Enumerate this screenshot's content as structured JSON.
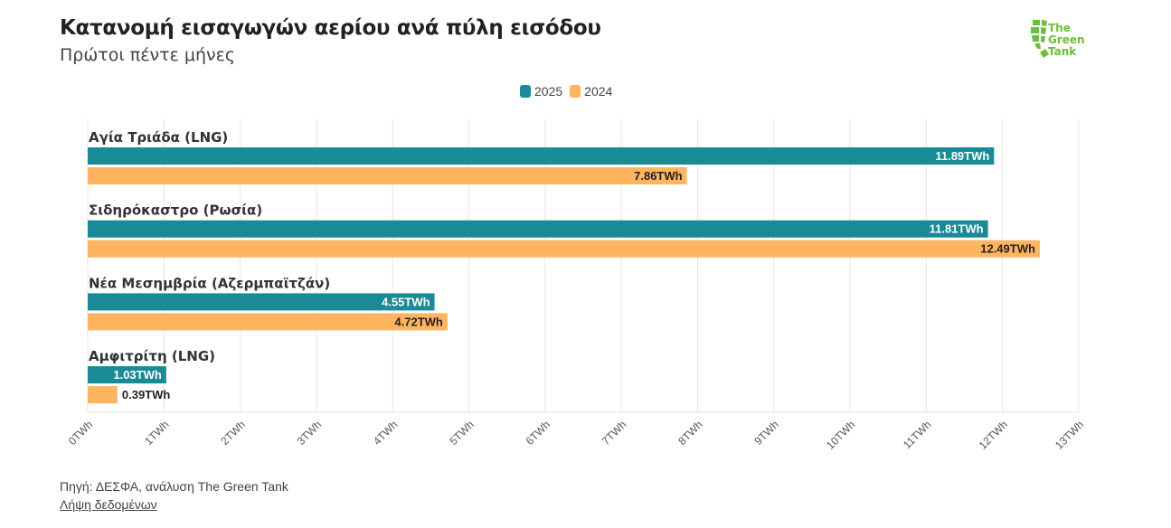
{
  "title": "Κατανομή εισαγωγών αερίου ανά πύλη εισόδου",
  "subtitle": "Πρώτοι πέντε μήνες",
  "logo": {
    "line1": "The",
    "line2": "Green",
    "line3": "Tank"
  },
  "legend": [
    {
      "label": "2025",
      "color": "#1a8a96"
    },
    {
      "label": "2024",
      "color": "#ffb55f"
    }
  ],
  "footer": {
    "source": "Πηγή: ΔΕΣΦΑ, ανάλυση The Green Tank",
    "download": "Λήψη δεδομένων"
  },
  "chart_data": {
    "type": "bar",
    "orientation": "horizontal",
    "categories": [
      "Αγία Τριάδα (LNG)",
      "Σιδηρόκαστρο (Ρωσία)",
      "Νέα Μεσημβρία (Αζερμπαϊτζάν)",
      "Αμφιτρίτη (LNG)"
    ],
    "series": [
      {
        "name": "2025",
        "color": "#1a8a96",
        "values": [
          11.89,
          11.81,
          4.55,
          1.03
        ]
      },
      {
        "name": "2024",
        "color": "#ffb55f",
        "values": [
          7.86,
          12.49,
          4.72,
          0.39
        ]
      }
    ],
    "value_suffix": "TWh",
    "xlim": [
      0,
      13
    ],
    "x_ticks": [
      "0TWh",
      "1TWh",
      "2TWh",
      "3TWh",
      "4TWh",
      "5TWh",
      "6TWh",
      "7TWh",
      "8TWh",
      "9TWh",
      "10TWh",
      "11TWh",
      "12TWh",
      "13TWh"
    ],
    "grid": true,
    "legend_position": "top-center"
  }
}
